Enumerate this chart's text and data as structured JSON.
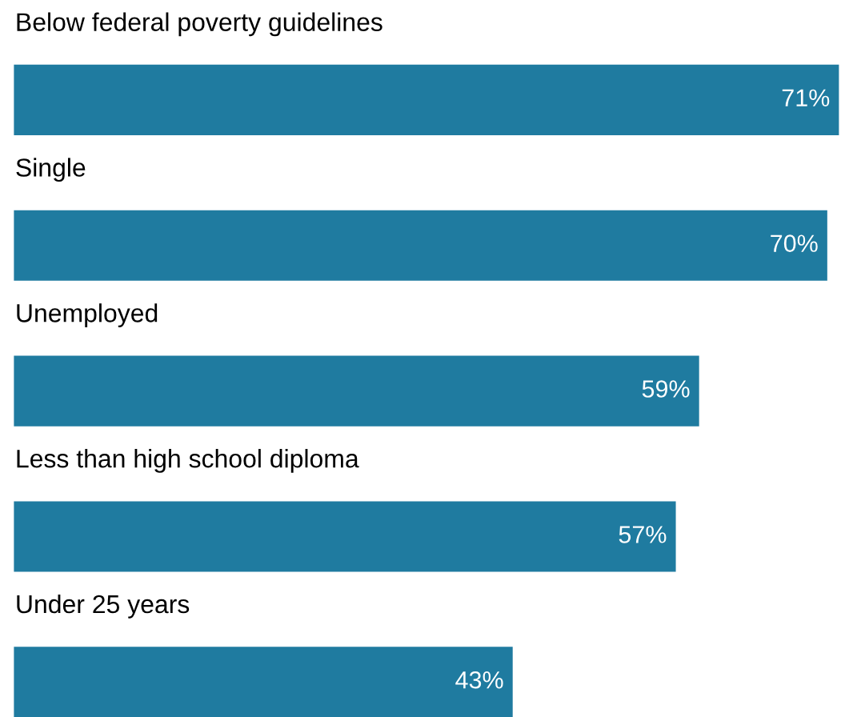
{
  "chart_data": {
    "type": "bar",
    "orientation": "horizontal",
    "categories": [
      "Below federal poverty guidelines",
      "Single",
      "Unemployed",
      "Less than high school diploma",
      "Under 25 years"
    ],
    "values": [
      71,
      70,
      59,
      57,
      43
    ],
    "value_labels": [
      "71%",
      "70%",
      "59%",
      "57%",
      "43%"
    ],
    "color": "#1f7ba0"
  }
}
